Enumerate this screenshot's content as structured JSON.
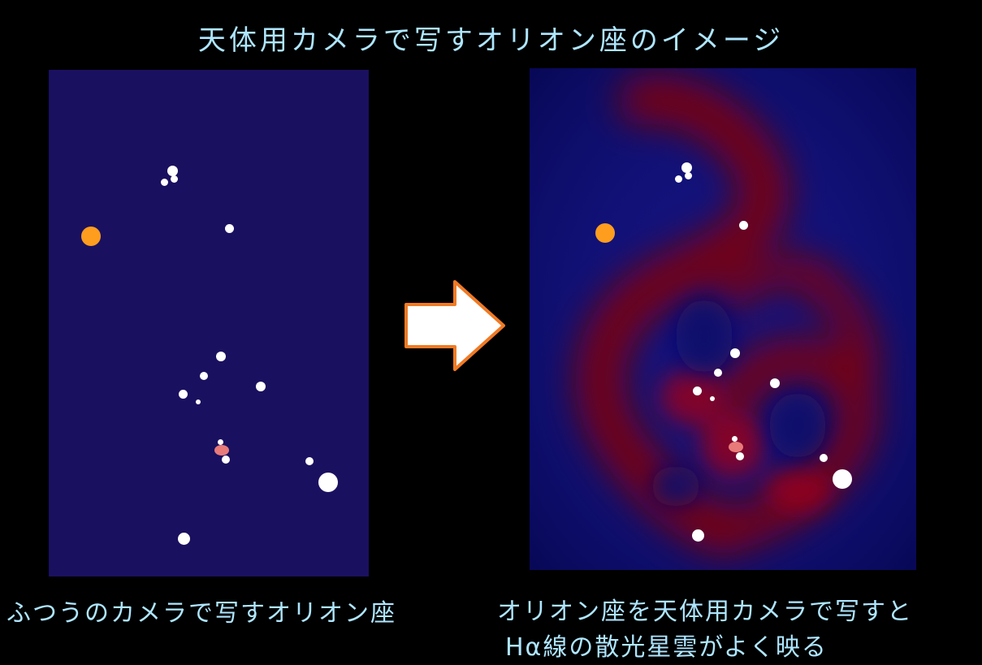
{
  "title": "天体用カメラで写すオリオン座のイメージ",
  "left_caption": "ふつうのカメラで写すオリオン座",
  "right_caption_line1": "オリオン座を天体用カメラで写すと",
  "right_caption_line2": "Hα線の散光星雲がよく映る",
  "colors": {
    "background": "#000000",
    "sky_left": "#1a1060",
    "sky_right": "#10106a",
    "nebula": "#8a0010",
    "star": "#ffffff",
    "betelgeuse": "#ff9d1e",
    "orion_nebula": "#e87a7a",
    "arrow_fill": "#ffffff",
    "arrow_stroke": "#f07a25",
    "text": "#aee6ff"
  },
  "icons": {
    "arrow": "right-arrow-icon"
  }
}
